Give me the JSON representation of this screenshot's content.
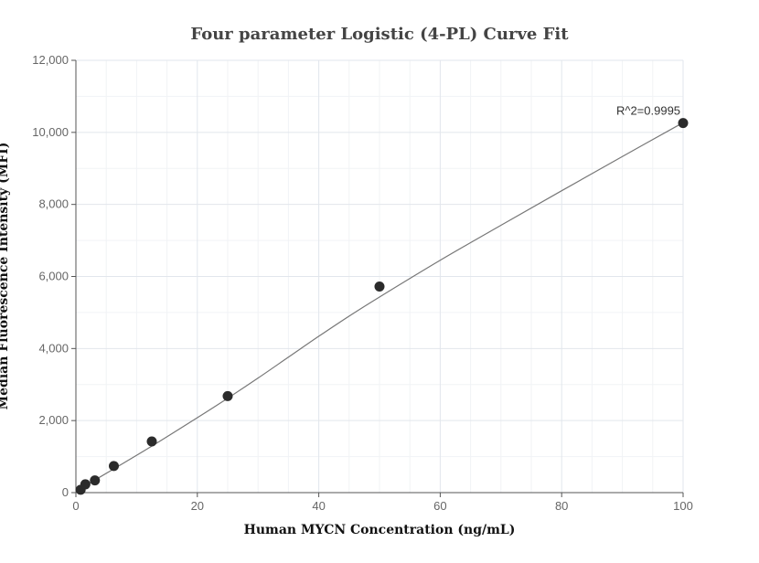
{
  "chart_data": {
    "type": "scatter",
    "title": "Four parameter Logistic (4-PL) Curve Fit",
    "xlabel": "Human MYCN Concentration (ng/mL)",
    "ylabel": "Median Fluorescence Intensity (MFI)",
    "xlim": [
      0,
      100
    ],
    "ylim": [
      0,
      12000
    ],
    "x_ticks": [
      0,
      20,
      40,
      60,
      80,
      100
    ],
    "y_ticks": [
      0,
      2000,
      4000,
      6000,
      8000,
      10000,
      12000
    ],
    "x_tick_labels": [
      "0",
      "20",
      "40",
      "60",
      "80",
      "100"
    ],
    "y_tick_labels": [
      "0",
      "2,000",
      "4,000",
      "6,000",
      "8,000",
      "10,000",
      "12,000"
    ],
    "grid": true,
    "series": [
      {
        "kind": "points",
        "x": [
          0.78,
          1.56,
          3.13,
          6.25,
          12.5,
          25,
          50,
          100
        ],
        "y": [
          80,
          230,
          340,
          740,
          1420,
          2680,
          5720,
          10260
        ],
        "color": "#2b2b2b"
      },
      {
        "kind": "fit-curve",
        "x": [
          0,
          0.78,
          1.56,
          3.13,
          6.25,
          12.5,
          20,
          25,
          30,
          35,
          40,
          45,
          50,
          60,
          70,
          80,
          90,
          100
        ],
        "y": [
          30,
          110,
          190,
          350,
          660,
          1290,
          2080,
          2620,
          3180,
          3760,
          4340,
          4900,
          5430,
          6450,
          7420,
          8380,
          9330,
          10270
        ],
        "color": "#777777"
      }
    ],
    "annotations": [
      {
        "text": "R^2=0.9995",
        "x": 100,
        "y": 10260
      }
    ]
  }
}
